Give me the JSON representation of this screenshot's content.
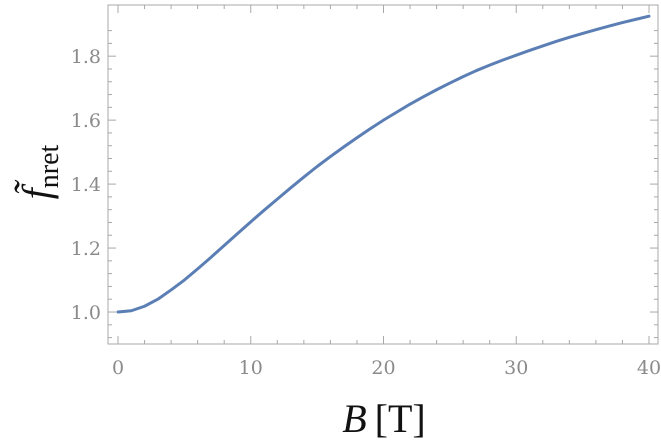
{
  "chart_data": {
    "type": "line",
    "xlabel": {
      "symbol": "B",
      "unit": "[T]"
    },
    "ylabel": {
      "symbol": "f̃",
      "subscript": "nret"
    },
    "xlim": [
      0,
      40
    ],
    "ylim": [
      0.9,
      1.96
    ],
    "xticks": [
      "0",
      "10",
      "20",
      "30",
      "40"
    ],
    "yticks": [
      "1.0",
      "1.2",
      "1.4",
      "1.6",
      "1.8"
    ],
    "grid": false,
    "colors": {
      "series": "#5b7fb5",
      "frame": "#a8a8a8",
      "ticklabel": "#8a8a8a"
    },
    "series": [
      {
        "x": [
          0,
          1,
          2,
          3,
          4,
          5,
          6,
          7,
          8,
          9,
          10,
          11,
          12,
          13,
          14,
          15,
          16,
          17,
          18,
          19,
          20,
          21,
          22,
          23,
          24,
          25,
          26,
          27,
          28,
          29,
          30,
          31,
          32,
          33,
          34,
          35,
          36,
          37,
          38,
          39,
          40
        ],
        "y": [
          1.0,
          1.004,
          1.018,
          1.04,
          1.069,
          1.1,
          1.135,
          1.171,
          1.208,
          1.245,
          1.282,
          1.318,
          1.353,
          1.388,
          1.422,
          1.455,
          1.486,
          1.516,
          1.545,
          1.573,
          1.6,
          1.625,
          1.65,
          1.673,
          1.695,
          1.716,
          1.736,
          1.755,
          1.772,
          1.788,
          1.803,
          1.818,
          1.832,
          1.846,
          1.859,
          1.871,
          1.883,
          1.894,
          1.905,
          1.915,
          1.925
        ]
      }
    ]
  }
}
